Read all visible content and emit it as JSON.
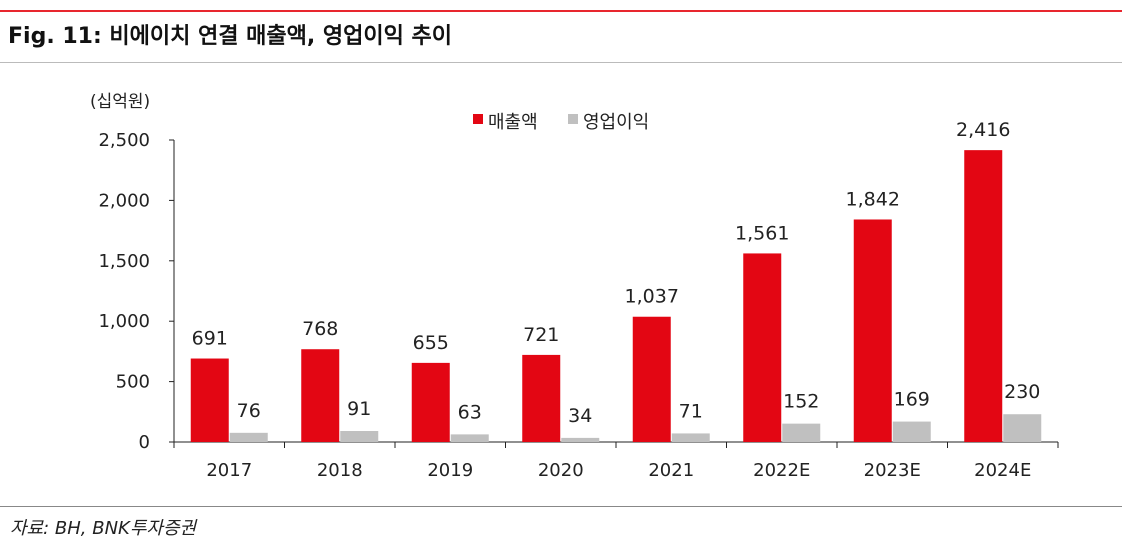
{
  "header": {
    "title": "Fig. 11: 비에이치 연결 매출액, 영업이익 추이"
  },
  "footer": {
    "source": "자료: BH, BNK투자증권"
  },
  "colors": {
    "accent": "#e8262e",
    "series_revenue": "#e30613",
    "series_operating_profit": "#c0c0c0"
  },
  "chart_data": {
    "type": "bar",
    "title": "",
    "unit_label": "(십억원)",
    "xlabel": "",
    "ylabel": "",
    "categories": [
      "2017",
      "2018",
      "2019",
      "2020",
      "2021",
      "2022E",
      "2023E",
      "2024E"
    ],
    "series": [
      {
        "name": "매출액",
        "color": "#e30613",
        "values": [
          691,
          768,
          655,
          721,
          1037,
          1561,
          1842,
          2416
        ],
        "labels": [
          "691",
          "768",
          "655",
          "721",
          "1,037",
          "1,561",
          "1,842",
          "2,416"
        ]
      },
      {
        "name": "영업이익",
        "color": "#c0c0c0",
        "values": [
          76,
          91,
          63,
          34,
          71,
          152,
          169,
          230
        ],
        "labels": [
          "76",
          "91",
          "63",
          "34",
          "71",
          "152",
          "169",
          "230"
        ]
      }
    ],
    "ylim": [
      0,
      2500
    ],
    "yticks": [
      0,
      500,
      1000,
      1500,
      2000,
      2500
    ],
    "ytick_labels": [
      "0",
      "500",
      "1,000",
      "1,500",
      "2,000",
      "2,500"
    ],
    "grid": false,
    "legend_position": "top-center"
  }
}
